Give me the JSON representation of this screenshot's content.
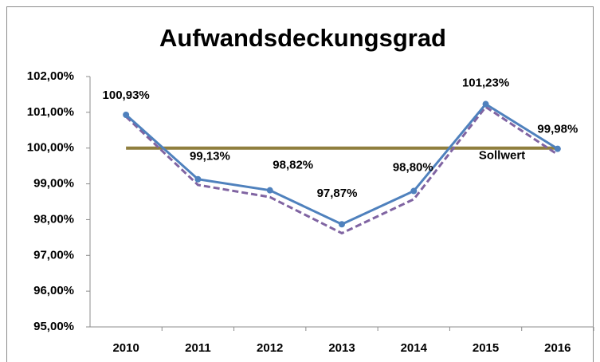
{
  "chart_data": {
    "type": "line",
    "title": "Aufwandsdeckungsgrad",
    "categories": [
      "2010",
      "2011",
      "2012",
      "2013",
      "2014",
      "2015",
      "2016"
    ],
    "series": [
      {
        "name": "Sollwert",
        "color": "#8f7f3e",
        "values": [
          100,
          100,
          100,
          100,
          100,
          100,
          100
        ]
      },
      {
        "color": "#8064a2",
        "dashed": true,
        "values": [
          100.88,
          98.97,
          98.63,
          97.62,
          98.57,
          101.15,
          99.82
        ]
      },
      {
        "color": "#4f81bd",
        "values": [
          100.93,
          99.13,
          98.82,
          97.87,
          98.8,
          101.23,
          99.98
        ],
        "value_labels": [
          "100,93%",
          "99,13%",
          "98,82%",
          "97,87%",
          "98,80%",
          "101,23%",
          "99,98%"
        ]
      }
    ],
    "ylim": [
      95,
      102
    ],
    "yticks": [
      {
        "value": 95,
        "label": "95,00%"
      },
      {
        "value": 96,
        "label": "96,00%"
      },
      {
        "value": 97,
        "label": "97,00%"
      },
      {
        "value": 98,
        "label": "98,00%"
      },
      {
        "value": 99,
        "label": "99,00%"
      },
      {
        "value": 100,
        "label": "100,00%"
      },
      {
        "value": 101,
        "label": "101,00%"
      },
      {
        "value": 102,
        "label": "102,00%"
      }
    ],
    "grid": false
  }
}
